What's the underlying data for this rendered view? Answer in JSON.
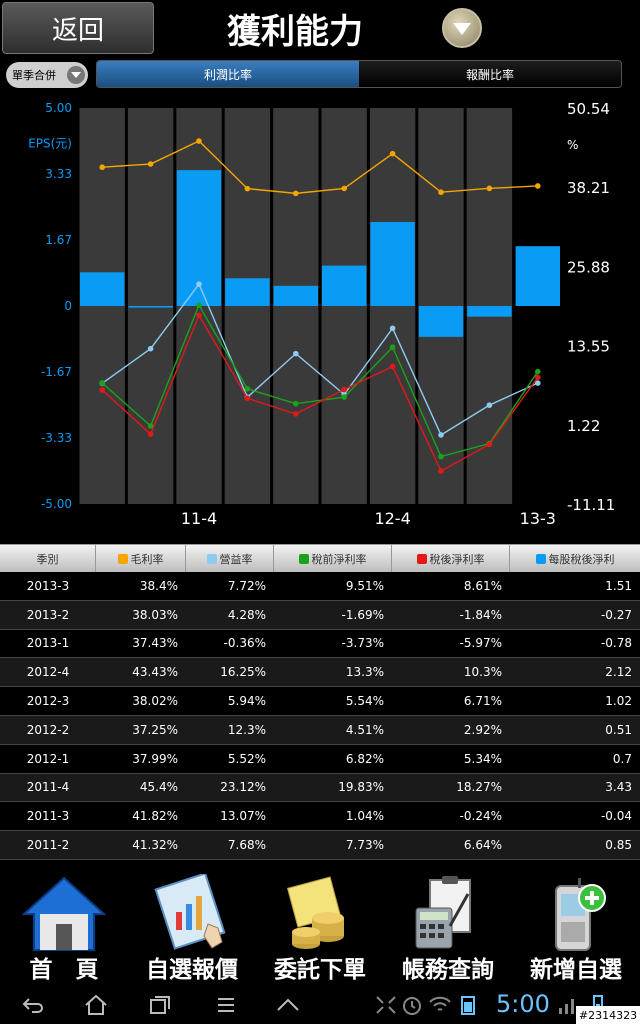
{
  "header": {
    "back_label": "返回",
    "title": "獲利能力",
    "dropdown_icon": "chevron-down-icon"
  },
  "segment": {
    "merge_label": "單季合併",
    "tabs": [
      "利潤比率",
      "報酬比率"
    ],
    "active_tab": 0
  },
  "colors": {
    "gross": "#f5a500",
    "operating": "#8ecbf0",
    "pretax": "#1aa31a",
    "aftertax": "#e31818",
    "eps": "#0a9cf5",
    "bar_bg": "#3a3a3a"
  },
  "chart_data": {
    "type": "bar",
    "categories": [
      "2011-2",
      "2011-3",
      "2011-4",
      "2012-1",
      "2012-2",
      "2012-3",
      "2012-4",
      "2013-1",
      "2013-2",
      "2013-3"
    ],
    "x_tick_labels": [
      "11-4",
      "12-4",
      "13-3"
    ],
    "left_axis": {
      "label": "EPS(元)",
      "ticks": [
        "5.00",
        "3.33",
        "1.67",
        "0",
        "-1.67",
        "-3.33",
        "-5.00"
      ],
      "ylim": [
        -5.0,
        5.0
      ]
    },
    "right_axis": {
      "label": "%",
      "ticks": [
        "50.54",
        "38.21",
        "25.88",
        "13.55",
        "1.22",
        "-11.11"
      ],
      "ylim": [
        -11.11,
        50.54
      ]
    },
    "eps_bars": [
      0.85,
      -0.04,
      3.43,
      0.7,
      0.51,
      1.02,
      2.12,
      -0.78,
      -0.27,
      1.51
    ],
    "series": [
      {
        "name": "毛利率",
        "values": [
          41.32,
          41.82,
          45.4,
          37.99,
          37.25,
          38.02,
          43.43,
          37.43,
          38.03,
          38.4
        ]
      },
      {
        "name": "營益率",
        "values": [
          7.68,
          13.07,
          23.12,
          5.52,
          12.3,
          5.94,
          16.25,
          -0.36,
          4.28,
          7.72
        ]
      },
      {
        "name": "稅前淨利率",
        "values": [
          7.73,
          1.04,
          19.83,
          6.82,
          4.51,
          5.54,
          13.3,
          -3.73,
          -1.69,
          9.51
        ]
      },
      {
        "name": "稅後淨利率",
        "values": [
          6.64,
          -0.24,
          18.27,
          5.34,
          2.92,
          6.71,
          10.3,
          -5.97,
          -1.84,
          8.61
        ]
      }
    ],
    "eps_series_name": "每股稅後淨利",
    "grid": true
  },
  "table": {
    "headers": [
      {
        "label": "季別",
        "color": ""
      },
      {
        "label": "毛利率",
        "color": "#f5a500"
      },
      {
        "label": "營益率",
        "color": "#8ecbf0"
      },
      {
        "label": "稅前淨利率",
        "color": "#1aa31a"
      },
      {
        "label": "稅後淨利率",
        "color": "#e31818"
      },
      {
        "label": "每股稅後淨利",
        "color": "#0a9cf5"
      }
    ],
    "rows": [
      [
        "2013-3",
        "38.4%",
        "7.72%",
        "9.51%",
        "8.61%",
        "1.51"
      ],
      [
        "2013-2",
        "38.03%",
        "4.28%",
        "-1.69%",
        "-1.84%",
        "-0.27"
      ],
      [
        "2013-1",
        "37.43%",
        "-0.36%",
        "-3.73%",
        "-5.97%",
        "-0.78"
      ],
      [
        "2012-4",
        "43.43%",
        "16.25%",
        "13.3%",
        "10.3%",
        "2.12"
      ],
      [
        "2012-3",
        "38.02%",
        "5.94%",
        "5.54%",
        "6.71%",
        "1.02"
      ],
      [
        "2012-2",
        "37.25%",
        "12.3%",
        "4.51%",
        "2.92%",
        "0.51"
      ],
      [
        "2012-1",
        "37.99%",
        "5.52%",
        "6.82%",
        "5.34%",
        "0.7"
      ],
      [
        "2011-4",
        "45.4%",
        "23.12%",
        "19.83%",
        "18.27%",
        "3.43"
      ],
      [
        "2011-3",
        "41.82%",
        "13.07%",
        "1.04%",
        "-0.24%",
        "-0.04"
      ],
      [
        "2011-2",
        "41.32%",
        "7.68%",
        "7.73%",
        "6.64%",
        "0.85"
      ]
    ]
  },
  "bottom_nav": [
    {
      "label": "首　頁",
      "icon": "home-icon"
    },
    {
      "label": "自選報價",
      "icon": "quote-chart-icon"
    },
    {
      "label": "委託下單",
      "icon": "coins-order-icon"
    },
    {
      "label": "帳務查詢",
      "icon": "calculator-icon"
    },
    {
      "label": "新增自選",
      "icon": "add-phone-icon"
    }
  ],
  "system_bar": {
    "time": "5:00",
    "watermark": "#2314323"
  }
}
